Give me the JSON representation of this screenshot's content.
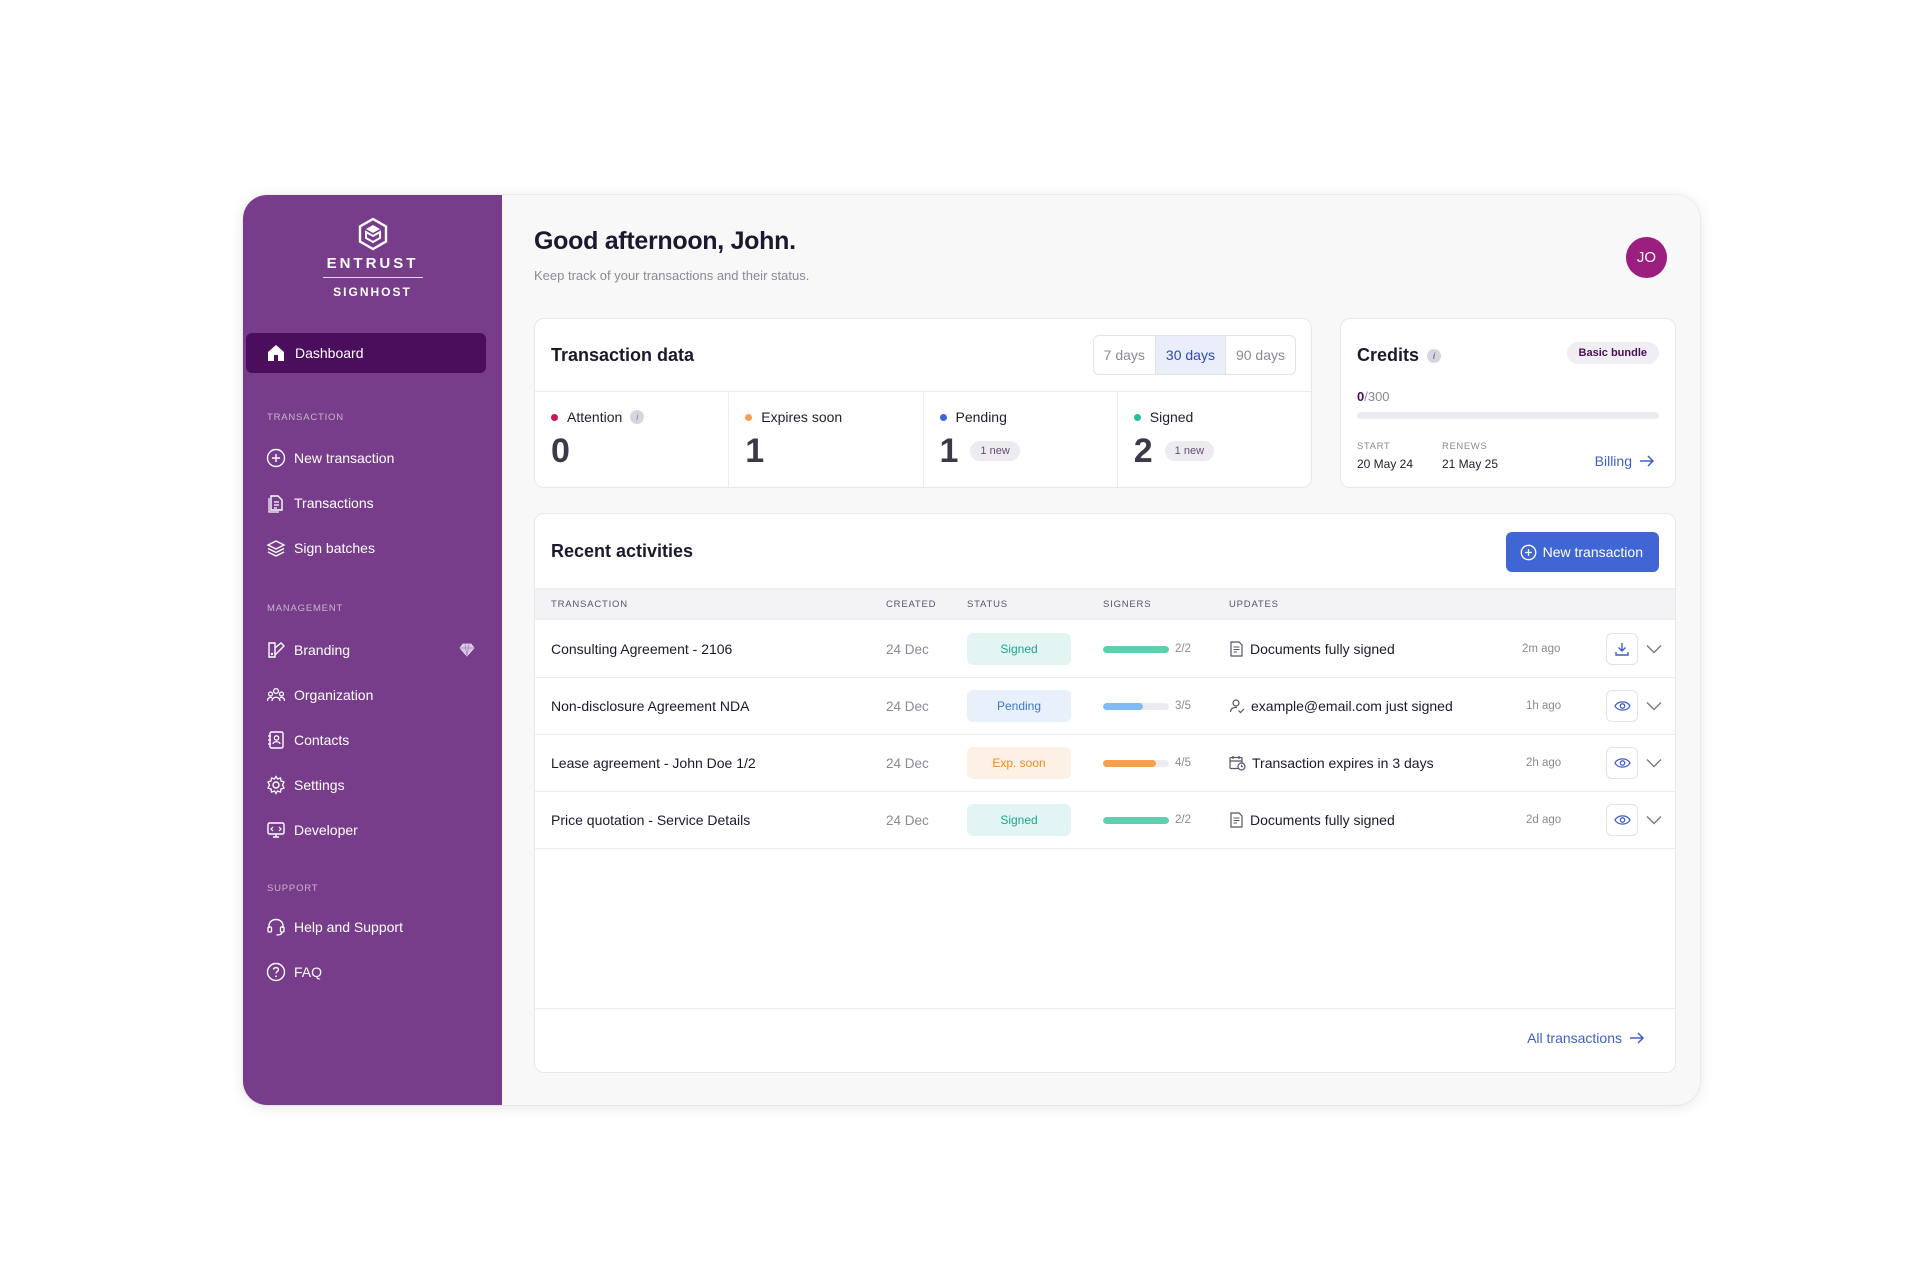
{
  "brand": {
    "name": "ENTRUST",
    "product": "SIGNHOST"
  },
  "sidebar": {
    "active": {
      "label": "Dashboard",
      "icon": "home-icon"
    },
    "sections": [
      {
        "title": "TRANSACTION",
        "items": [
          {
            "label": "New transaction",
            "icon": "plus-circle-icon"
          },
          {
            "label": "Transactions",
            "icon": "document-icon"
          },
          {
            "label": "Sign batches",
            "icon": "layers-icon"
          }
        ]
      },
      {
        "title": "MANAGEMENT",
        "items": [
          {
            "label": "Branding",
            "icon": "brush-icon",
            "badge_icon": "diamond-icon"
          },
          {
            "label": "Organization",
            "icon": "organization-icon"
          },
          {
            "label": "Contacts",
            "icon": "contacts-icon"
          },
          {
            "label": "Settings",
            "icon": "gear-icon"
          },
          {
            "label": "Developer",
            "icon": "developer-icon"
          }
        ]
      },
      {
        "title": "SUPPORT",
        "items": [
          {
            "label": "Help and Support",
            "icon": "headset-icon"
          },
          {
            "label": "FAQ",
            "icon": "question-icon"
          }
        ]
      }
    ]
  },
  "header": {
    "greeting": "Good afternoon, John.",
    "subtitle": "Keep track of your transactions and their status.",
    "avatar_initials": "JO"
  },
  "transaction_data": {
    "title": "Transaction data",
    "ranges": [
      "7 days",
      "30 days",
      "90 days"
    ],
    "selected_range": "30 days",
    "stats": [
      {
        "label": "Attention",
        "value": "0",
        "color": "#c2185b",
        "info": "i",
        "new": ""
      },
      {
        "label": "Expires soon",
        "value": "1",
        "color": "#f5a04a",
        "info": "",
        "new": ""
      },
      {
        "label": "Pending",
        "value": "1",
        "color": "#3f66d4",
        "info": "",
        "new": "1 new"
      },
      {
        "label": "Signed",
        "value": "2",
        "color": "#1fbf9a",
        "info": "",
        "new": "1 new"
      }
    ]
  },
  "credits": {
    "title": "Credits",
    "info": "i",
    "bundle": "Basic bundle",
    "used": "0",
    "total": "/300",
    "used_fraction": 0,
    "start_label": "START",
    "start_value": "20 May 24",
    "renews_label": "RENEWS",
    "renews_value": "21 May 25",
    "billing_label": "Billing"
  },
  "recent": {
    "title": "Recent activities",
    "new_button": "New transaction",
    "columns": [
      "TRANSACTION",
      "CREATED",
      "STATUS",
      "SIGNERS",
      "UPDATES"
    ],
    "rows": [
      {
        "name": "Consulting Agreement - 2106",
        "created": "24 Dec",
        "status": "Signed",
        "status_kind": "signed",
        "signers": "2/2",
        "signers_fraction": 1.0,
        "bar_color": "#5fcdb0",
        "update_icon": "document-check-icon",
        "update": "Documents fully signed",
        "ago": "2m ago",
        "action": "download-icon"
      },
      {
        "name": "Non-disclosure Agreement NDA",
        "created": "24 Dec",
        "status": "Pending",
        "status_kind": "pending",
        "signers": "3/5",
        "signers_fraction": 0.6,
        "bar_color": "#7fbaf0",
        "update_icon": "user-check-icon",
        "update": "example@email.com just signed",
        "ago": "1h ago",
        "action": "eye-icon"
      },
      {
        "name": "Lease agreement - John Doe 1/2",
        "created": "24 Dec",
        "status": "Exp. soon",
        "status_kind": "exp",
        "signers": "4/5",
        "signers_fraction": 0.8,
        "bar_color": "#f7a04e",
        "update_icon": "calendar-clock-icon",
        "update": "Transaction expires in 3 days",
        "ago": "2h ago",
        "action": "eye-icon"
      },
      {
        "name": "Price quotation - Service Details",
        "created": "24 Dec",
        "status": "Signed",
        "status_kind": "signed",
        "signers": "2/2",
        "signers_fraction": 1.0,
        "bar_color": "#5fcdb0",
        "update_icon": "document-check-icon",
        "update": "Documents fully signed",
        "ago": "2d ago",
        "action": "eye-icon"
      }
    ],
    "all_link": "All transactions"
  }
}
